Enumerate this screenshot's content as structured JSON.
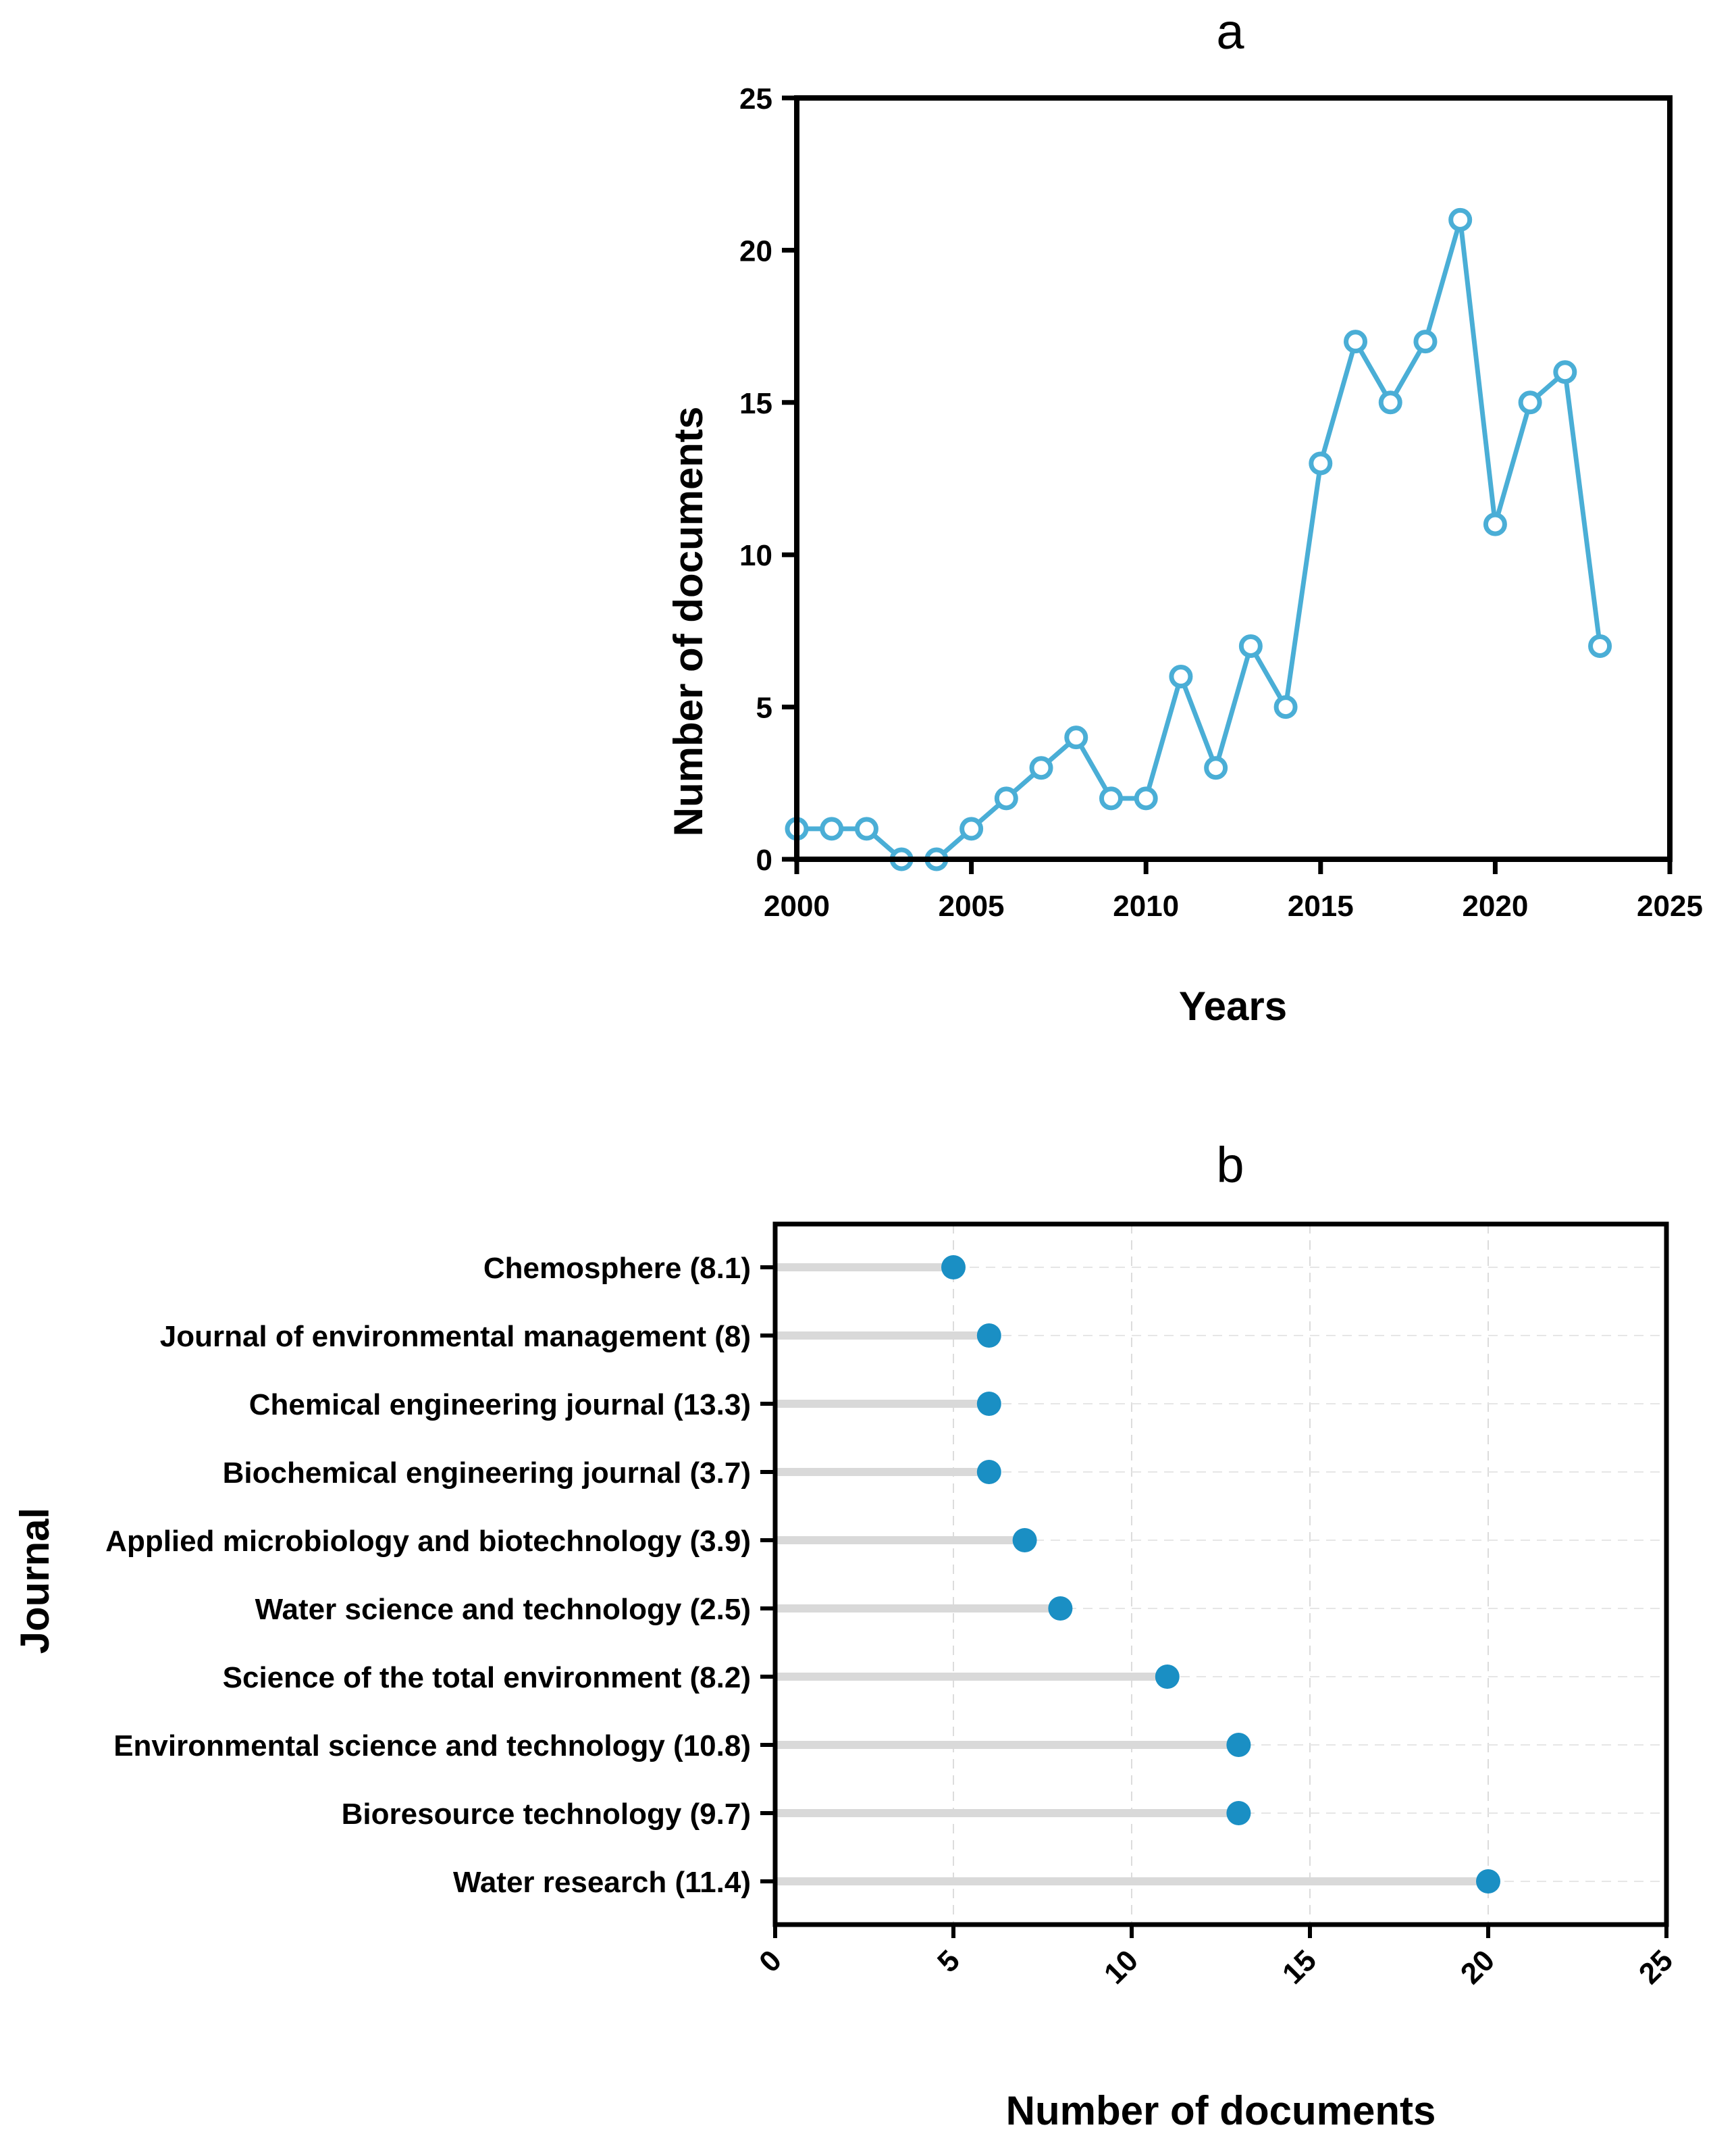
{
  "chart_data": [
    {
      "type": "line",
      "panel": "a",
      "xlabel": "Years",
      "ylabel": "Number of documents",
      "xlim": [
        2000,
        2025
      ],
      "ylim": [
        0,
        25
      ],
      "xticks": [
        2000,
        2005,
        2010,
        2015,
        2020,
        2025
      ],
      "yticks": [
        0,
        5,
        10,
        15,
        20,
        25
      ],
      "x": [
        2000,
        2001,
        2002,
        2003,
        2004,
        2005,
        2006,
        2007,
        2008,
        2009,
        2010,
        2011,
        2012,
        2013,
        2014,
        2015,
        2016,
        2017,
        2018,
        2019,
        2020,
        2021,
        2022,
        2023
      ],
      "values": [
        1,
        1,
        1,
        0,
        0,
        1,
        2,
        3,
        4,
        2,
        2,
        6,
        3,
        7,
        5,
        13,
        17,
        15,
        17,
        21,
        11,
        15,
        16,
        7
      ],
      "color": "#4aaed6",
      "grid": false
    },
    {
      "type": "lollipop",
      "panel": "b",
      "xlabel": "Number of documents",
      "ylabel": "Journal",
      "xlim": [
        0,
        25
      ],
      "xticks": [
        0,
        5,
        10,
        15,
        20,
        25
      ],
      "categories": [
        "Chemosphere (8.1)",
        "Journal of environmental management (8)",
        "Chemical engineering journal (13.3)",
        "Biochemical engineering journal (3.7)",
        "Applied microbiology and biotechnology (3.9)",
        "Water science and technology (2.5)",
        "Science of the total environment (8.2)",
        "Environmental science and technology (10.8)",
        "Bioresource technology (9.7)",
        "Water research (11.4)"
      ],
      "values": [
        5,
        6,
        6,
        6,
        7,
        8,
        11,
        13,
        13,
        20
      ],
      "dot_color": "#1a8fc4",
      "stem_color": "#d9d9d9",
      "grid": true
    }
  ]
}
